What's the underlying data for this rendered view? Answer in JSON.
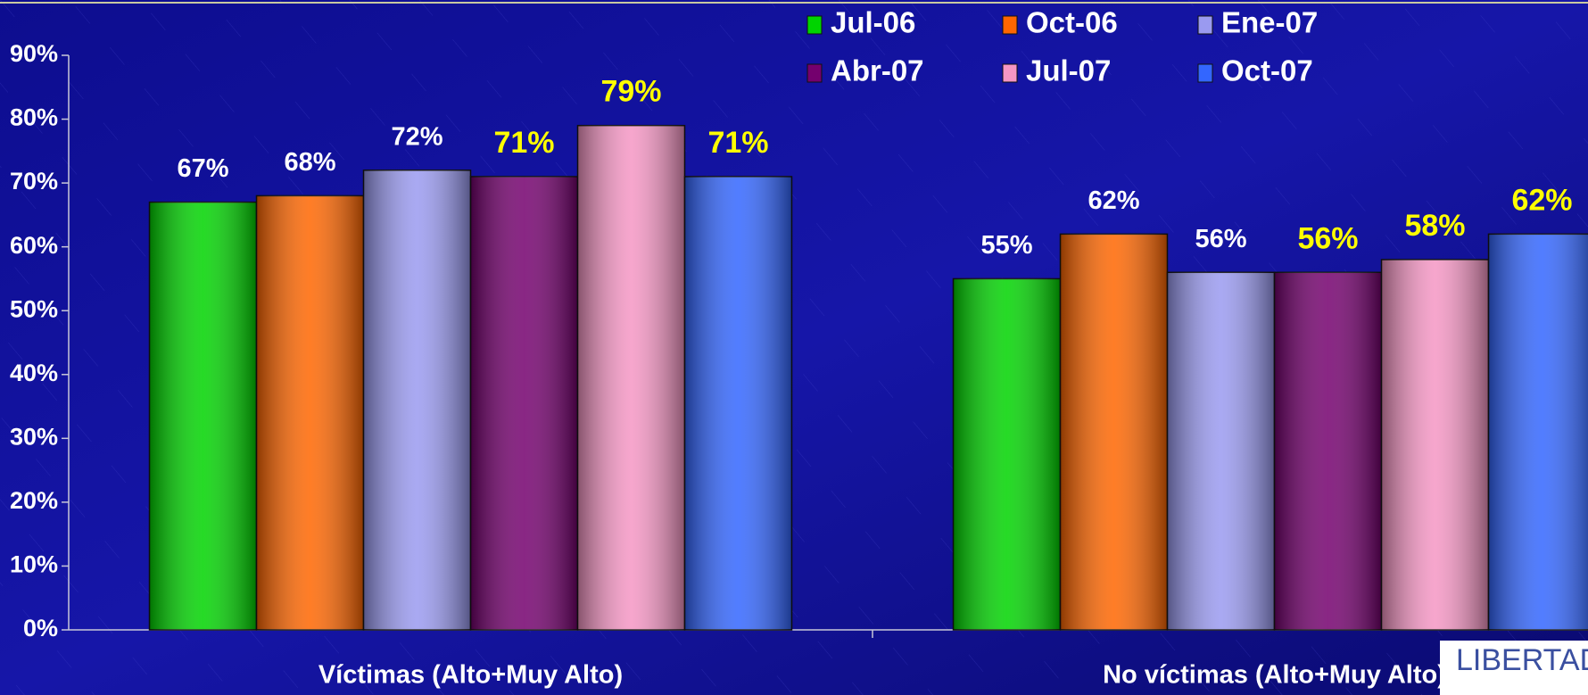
{
  "chart_data": {
    "type": "bar",
    "categories": [
      "Víctimas (Alto+Muy Alto)",
      "No víctimas (Alto+Muy Alto)"
    ],
    "series": [
      {
        "name": "Jul-06",
        "color": "#00d400",
        "label_color": "#ffffff",
        "values": [
          67,
          55
        ],
        "value_labels": [
          "67%",
          "55%"
        ]
      },
      {
        "name": "Oct-06",
        "color": "#ff6600",
        "label_color": "#ffffff",
        "values": [
          68,
          62
        ],
        "value_labels": [
          "68%",
          "62%"
        ]
      },
      {
        "name": "Ene-07",
        "color": "#9a9af0",
        "label_color": "#ffffff",
        "values": [
          72,
          56
        ],
        "value_labels": [
          "72%",
          "56%"
        ]
      },
      {
        "name": "Abr-07",
        "color": "#74006e",
        "label_color": "#ffff00",
        "values": [
          71,
          56
        ],
        "value_labels": [
          "71%",
          "56%"
        ]
      },
      {
        "name": "Jul-07",
        "color": "#f596c4",
        "label_color": "#ffff00",
        "values": [
          79,
          58
        ],
        "value_labels": [
          "79%",
          "58%"
        ]
      },
      {
        "name": "Oct-07",
        "color": "#3366ff",
        "label_color": "#ffff00",
        "values": [
          71,
          62
        ],
        "value_labels": [
          "71%",
          "62%"
        ]
      }
    ],
    "ylim": [
      0,
      90
    ],
    "yticks": [
      {
        "value": 0,
        "label": "0%"
      },
      {
        "value": 10,
        "label": "10%"
      },
      {
        "value": 20,
        "label": "20%"
      },
      {
        "value": 30,
        "label": "30%"
      },
      {
        "value": 40,
        "label": "40%"
      },
      {
        "value": 50,
        "label": "50%"
      },
      {
        "value": 60,
        "label": "60%"
      },
      {
        "value": 70,
        "label": "70%"
      },
      {
        "value": 80,
        "label": "80%"
      },
      {
        "value": 90,
        "label": "90%"
      }
    ],
    "grid": false,
    "legend": "top",
    "logo": "LIBERTAD"
  }
}
